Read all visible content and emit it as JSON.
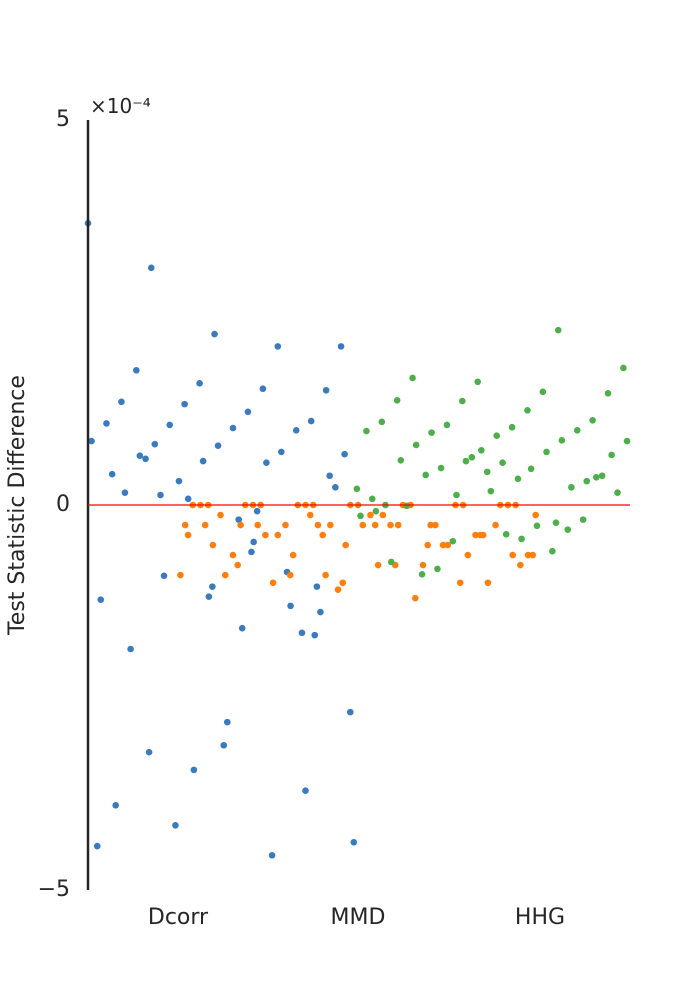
{
  "chart_data": {
    "type": "strip",
    "y_label": "Test Statistic Difference",
    "y_multiplier": "×10⁻⁴",
    "categories": [
      "Dcorr",
      "MMD",
      "HHG"
    ],
    "series": [
      {
        "color": "#3a7bbf",
        "values": [
          3.66,
          -0.48,
          3.08,
          -1.06,
          2.22,
          0.4,
          2.06,
          -4.16,
          2.06,
          -0.19,
          1.75,
          -1.66,
          1.58,
          -4.43,
          1.51,
          0.13,
          1.49,
          -3.12,
          1.34,
          -0.87,
          1.31,
          -2.69,
          1.21,
          0.6,
          1.09,
          -1.19,
          1.06,
          -4.55,
          1.04,
          0.23,
          1.0,
          -1.87,
          0.97,
          -3.44,
          0.83,
          -0.08,
          0.79,
          -1.39,
          0.77,
          -3.9,
          0.69,
          0.31,
          0.66,
          -1.6,
          0.64,
          -3.71,
          0.57,
          -1.23,
          0.55,
          -0.92,
          0.38,
          -2.82,
          0.16,
          -1.31,
          0.08,
          -4.38,
          -0.61,
          -3.21,
          -1.69,
          -1.06
        ]
      },
      {
        "color": "#ff7f0e",
        "values": [
          0,
          -0.13,
          -0.26,
          0,
          -0.39,
          -0.52,
          0,
          -0.26,
          -0.65,
          0,
          -0.78,
          -0.26,
          0,
          -0.91,
          -0.39,
          0,
          -1.01,
          -0.26,
          0,
          -0.13,
          -0.52,
          0,
          -0.65,
          -0.26,
          0,
          -0.39,
          -1.1,
          0,
          -0.78,
          -0.26,
          0,
          -0.13,
          -0.65,
          0,
          -0.26,
          -0.91,
          0,
          -0.39,
          -1.01,
          0,
          -0.52,
          -0.26,
          0,
          -0.78,
          -0.13,
          0,
          -0.65,
          -0.26,
          0,
          -1.21,
          -0.39,
          0,
          -0.26,
          -0.91,
          -0.52,
          -0.13,
          -0.65,
          -0.78,
          -0.26,
          -0.39,
          -1.01,
          -0.26,
          -0.52,
          -0.91,
          -0.65,
          -0.26,
          -0.78,
          -1.01,
          -0.39,
          -0.26
        ]
      },
      {
        "color": "#4daf4a",
        "values": [
          2.27,
          -0.47,
          1.78,
          0.34,
          1.65,
          -0.19,
          1.6,
          0.08,
          1.47,
          -0.83,
          1.45,
          0.55,
          1.36,
          -0.32,
          1.35,
          0.21,
          1.23,
          -0.9,
          1.1,
          0.43,
          1.08,
          -0.6,
          1.04,
          0.16,
          1.01,
          -0.01,
          0.97,
          0.62,
          0.96,
          -0.27,
          0.94,
          0.38,
          0.9,
          -0.74,
          0.84,
          0.13,
          0.83,
          -0.44,
          0.78,
          0.31,
          0.71,
          -0.08,
          0.69,
          0.48,
          0.65,
          -0.38,
          0.58,
          0.23,
          0.57,
          -0.14,
          0.47,
          0.39,
          0.36,
          0.18,
          0,
          -0.23
        ]
      }
    ],
    "reference_line": {
      "value": 0,
      "color": "#ff0000"
    },
    "ylim": [
      -5,
      5
    ],
    "yticks": [
      {
        "value": -5,
        "label": "−5"
      },
      0,
      5
    ]
  }
}
